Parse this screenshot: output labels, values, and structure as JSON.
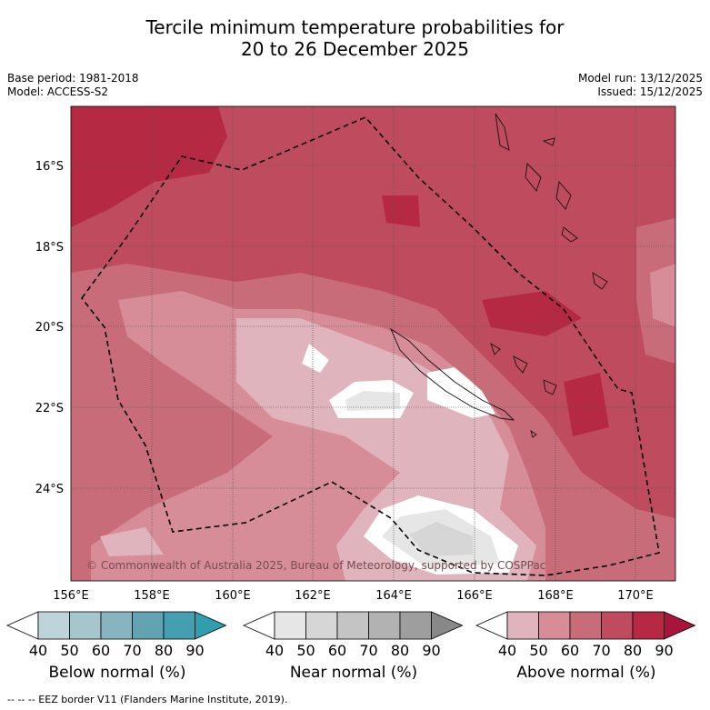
{
  "title_line1": "Tercile minimum temperature probabilities for",
  "title_line2": "20 to 26 December 2025",
  "base_period": "Base period: 1981-2018",
  "model": "Model: ACCESS-S2",
  "model_run": "Model run: 13/12/2025",
  "issued": "Issued: 15/12/2025",
  "map": {
    "lon_ticks": [
      "156°E",
      "158°E",
      "160°E",
      "162°E",
      "164°E",
      "166°E",
      "168°E",
      "170°E"
    ],
    "lat_ticks": [
      "16°S",
      "18°S",
      "20°S",
      "22°S",
      "24°S"
    ],
    "copyright": "© Commonwealth of Australia 2025, Bureau of Meteorology, supported by COSPPac",
    "field": "Above normal"
  },
  "colorbars": [
    {
      "label": "Below normal (%)",
      "ticks": [
        "40",
        "50",
        "60",
        "70",
        "80",
        "90"
      ],
      "colors": [
        "#ffffff",
        "#bcd4da",
        "#a4c6cc",
        "#86b5c0",
        "#62a3b2",
        "#44a0b0",
        "#2f9fb0"
      ]
    },
    {
      "label": "Near normal (%)",
      "ticks": [
        "40",
        "50",
        "60",
        "70",
        "80",
        "90"
      ],
      "colors": [
        "#ffffff",
        "#e6e6e6",
        "#d6d6d6",
        "#c4c4c4",
        "#b2b2b2",
        "#9e9e9e",
        "#888888"
      ]
    },
    {
      "label": "Above normal (%)",
      "ticks": [
        "40",
        "50",
        "60",
        "70",
        "80",
        "90"
      ],
      "colors": [
        "#ffffff",
        "#e0b4bc",
        "#d68d98",
        "#c96c79",
        "#bf4c5e",
        "#b52a42",
        "#a8143a"
      ]
    }
  ],
  "footer": "--  --  -- EEZ border V11 (Flanders Marine Institute, 2019)."
}
